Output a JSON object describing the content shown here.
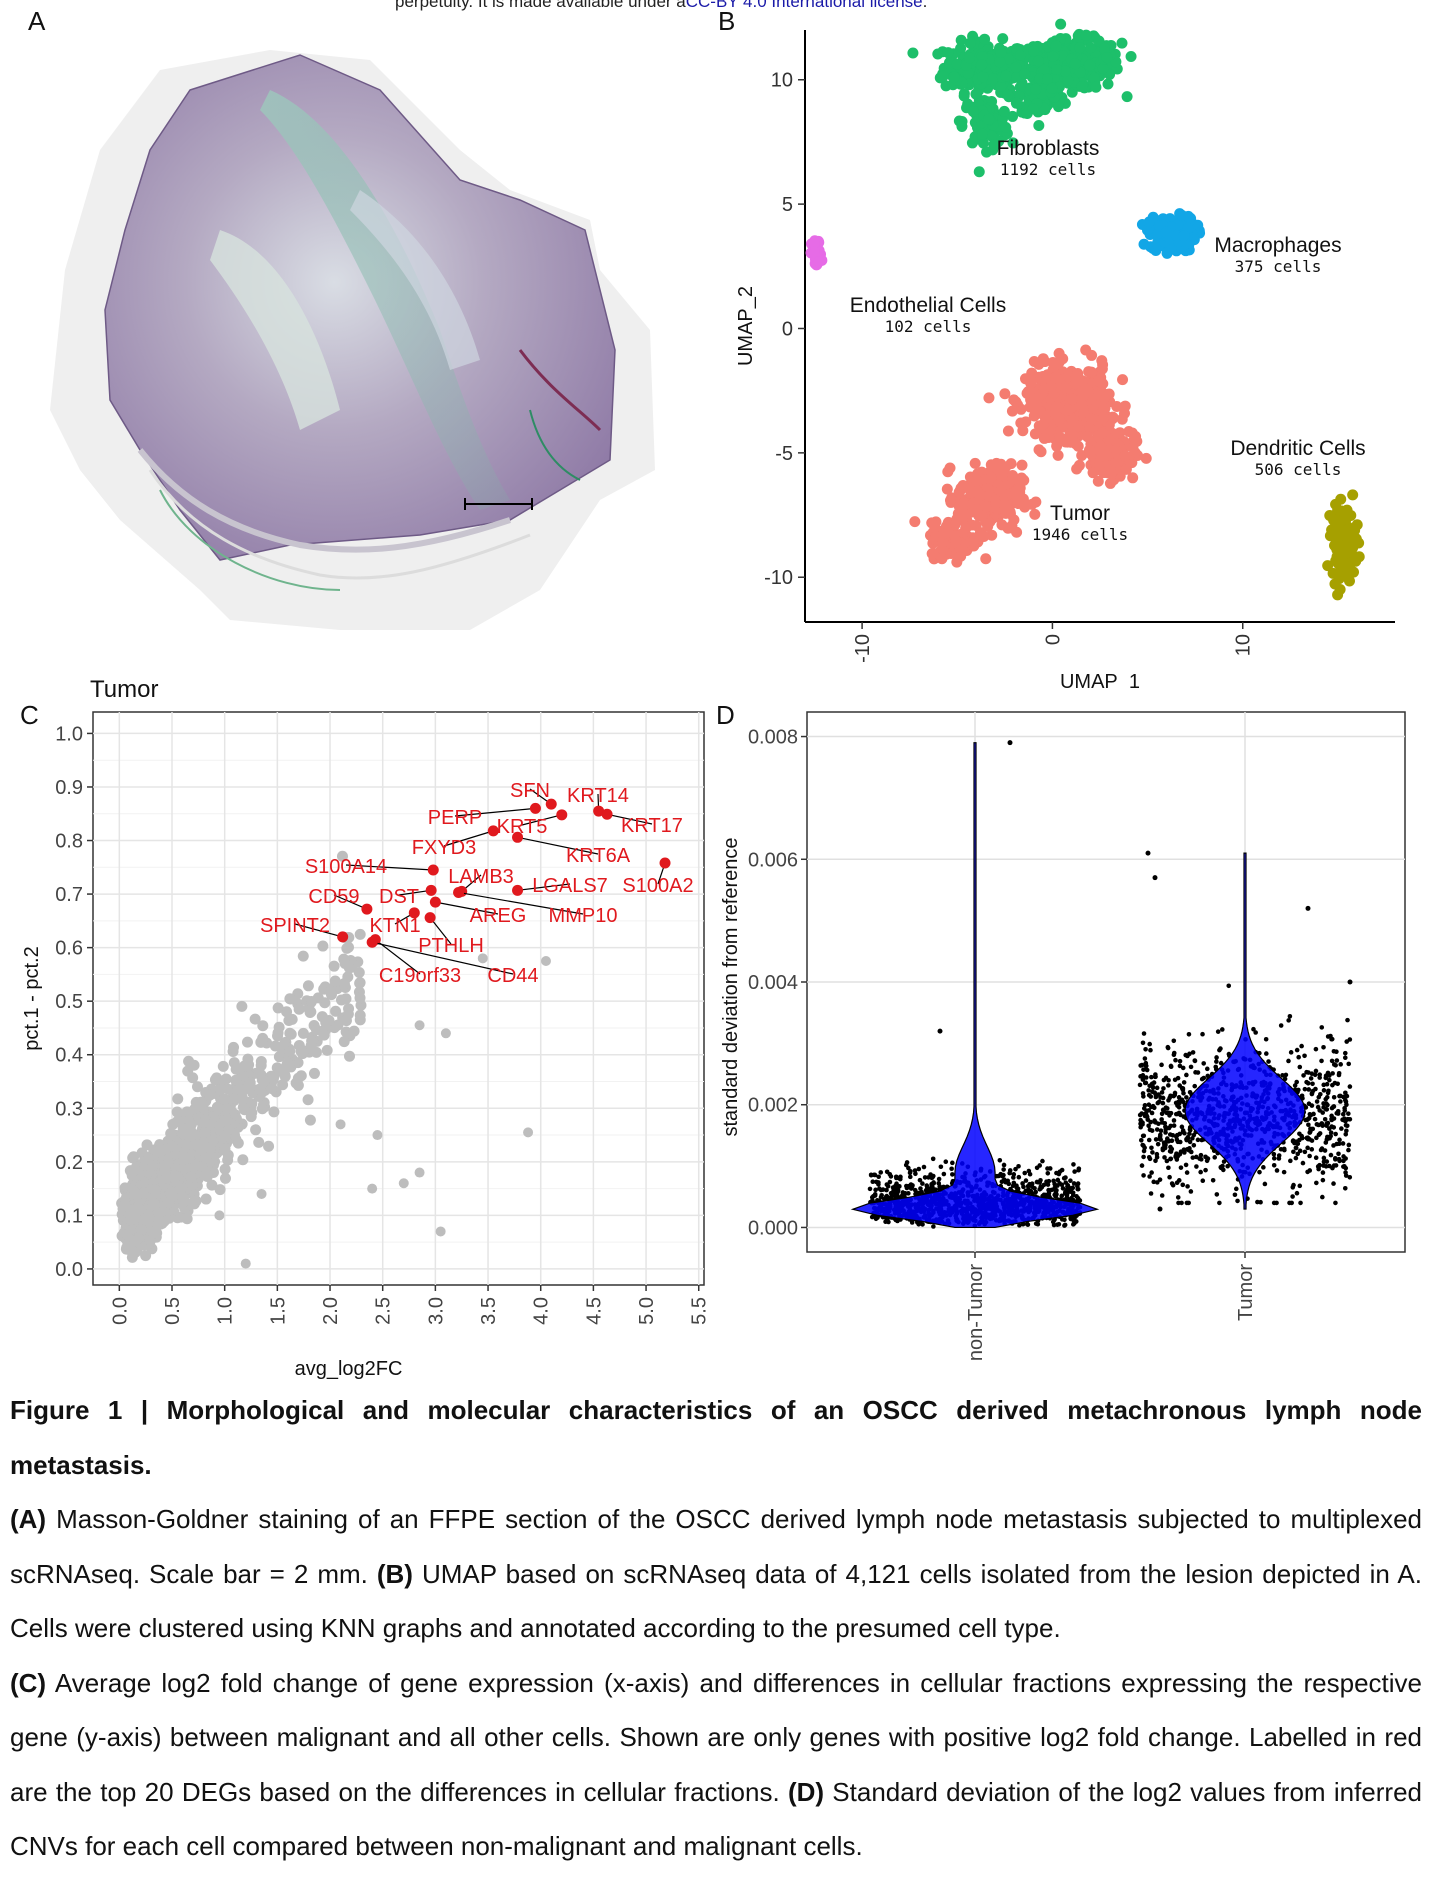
{
  "top_note": {
    "text_before": "perpetuity. It is made available under a",
    "license": "CC-BY 4.0 International license",
    "text_after": "."
  },
  "panels": {
    "a": "A",
    "b": "B",
    "c": "C",
    "d": "D"
  },
  "chart_data": [
    {
      "id": "B",
      "type": "scatter",
      "title": "",
      "xlabel": "UMAP_1",
      "ylabel": "UMAP_2",
      "xlim": [
        -13,
        18
      ],
      "ylim": [
        -11.8,
        12
      ],
      "xticks": [
        -10,
        0,
        10
      ],
      "xtick_labels": [
        "-10",
        "0",
        "10"
      ],
      "yticks": [
        -10,
        -5,
        0,
        5,
        10
      ],
      "ytick_labels": [
        "-10",
        "-5",
        "0",
        "5",
        "10"
      ],
      "clusters": [
        {
          "name": "Fibroblasts",
          "count_label": "1192 cells",
          "color": "#1DBF6A",
          "center": [
            -1.5,
            10.2
          ]
        },
        {
          "name": "Macrophages",
          "count_label": "375 cells",
          "color": "#12A6E6",
          "center": [
            6.2,
            3.8
          ]
        },
        {
          "name": "Endothelial Cells",
          "count_label": "102 cells",
          "color": "#E66BE6",
          "center": [
            -12.4,
            3.1
          ]
        },
        {
          "name": "Tumor",
          "count_label": "1946 cells",
          "color": "#F47C70",
          "center": [
            -1.5,
            -4.8
          ]
        },
        {
          "name": "Dendritic Cells",
          "count_label": "506 cells",
          "color": "#A6A000",
          "center": [
            15.3,
            -8.6
          ]
        }
      ]
    },
    {
      "id": "C",
      "type": "scatter",
      "title": "Tumor",
      "xlabel": "avg_log2FC",
      "ylabel": "pct.1 - pct.2",
      "xlim": [
        -0.25,
        5.55
      ],
      "ylim": [
        -0.03,
        1.04
      ],
      "xticks": [
        0,
        0.5,
        1,
        1.5,
        2,
        2.5,
        3,
        3.5,
        4,
        4.5,
        5,
        5.5
      ],
      "xtick_labels": [
        "0.0",
        "0.5",
        "1.0",
        "1.5",
        "2.0",
        "2.5",
        "3.0",
        "3.5",
        "4.0",
        "4.5",
        "5.0",
        "5.5"
      ],
      "yticks": [
        0,
        0.1,
        0.2,
        0.3,
        0.4,
        0.5,
        0.6,
        0.7,
        0.8,
        0.9,
        1.0
      ],
      "ytick_labels": [
        "0.0",
        "0.1",
        "0.2",
        "0.3",
        "0.4",
        "0.5",
        "0.6",
        "0.7",
        "0.8",
        "0.9",
        "1.0"
      ],
      "highlight_color": "#E0191E",
      "background_color": "#BDBDBD",
      "labelled_genes": [
        {
          "gene": "SFN",
          "x": 4.1,
          "y": 0.868
        },
        {
          "gene": "KRT14",
          "x": 4.55,
          "y": 0.855
        },
        {
          "gene": "KRT17",
          "x": 4.63,
          "y": 0.849
        },
        {
          "gene": "PERP",
          "x": 3.95,
          "y": 0.86
        },
        {
          "gene": "KRT5",
          "x": 4.2,
          "y": 0.848
        },
        {
          "gene": "KRT6A",
          "x": 3.78,
          "y": 0.806
        },
        {
          "gene": "FXYD3",
          "x": 3.55,
          "y": 0.818
        },
        {
          "gene": "S100A14",
          "x": 2.98,
          "y": 0.745
        },
        {
          "gene": "LAMB3",
          "x": 3.25,
          "y": 0.705
        },
        {
          "gene": "LGALS7",
          "x": 3.78,
          "y": 0.707
        },
        {
          "gene": "S100A2",
          "x": 5.18,
          "y": 0.758
        },
        {
          "gene": "CD59",
          "x": 2.35,
          "y": 0.672
        },
        {
          "gene": "DST",
          "x": 2.96,
          "y": 0.707
        },
        {
          "gene": "AREG",
          "x": 3.0,
          "y": 0.685
        },
        {
          "gene": "MMP10",
          "x": 3.22,
          "y": 0.703
        },
        {
          "gene": "SPINT2",
          "x": 2.12,
          "y": 0.62
        },
        {
          "gene": "KTN1",
          "x": 2.8,
          "y": 0.665
        },
        {
          "gene": "PTHLH",
          "x": 2.95,
          "y": 0.656
        },
        {
          "gene": "C19orf33",
          "x": 2.43,
          "y": 0.615
        },
        {
          "gene": "CD44",
          "x": 2.4,
          "y": 0.61
        }
      ],
      "background_outliers": [
        {
          "x": 2.1,
          "y": 0.27
        },
        {
          "x": 2.45,
          "y": 0.25
        },
        {
          "x": 2.4,
          "y": 0.15
        },
        {
          "x": 2.85,
          "y": 0.18
        },
        {
          "x": 2.7,
          "y": 0.16
        },
        {
          "x": 3.05,
          "y": 0.07
        },
        {
          "x": 3.88,
          "y": 0.255
        },
        {
          "x": 4.05,
          "y": 0.575
        },
        {
          "x": 3.1,
          "y": 0.44
        },
        {
          "x": 2.85,
          "y": 0.455
        },
        {
          "x": 3.45,
          "y": 0.58
        },
        {
          "x": 1.2,
          "y": 0.01
        },
        {
          "x": 1.35,
          "y": 0.14
        },
        {
          "x": 0.95,
          "y": 0.1
        }
      ]
    },
    {
      "id": "D",
      "type": "violin",
      "title": "",
      "xlabel": "",
      "ylabel": "standard deviation from reference",
      "categories": [
        "non-Tumor",
        "Tumor"
      ],
      "ylim": [
        -0.0004,
        0.0084
      ],
      "yticks": [
        0,
        0.002,
        0.004,
        0.006,
        0.008
      ],
      "ytick_labels": [
        "0.000",
        "0.002",
        "0.004",
        "0.006",
        "0.008"
      ],
      "fill_color": "#0000FF",
      "series": [
        {
          "name": "non-Tumor",
          "min": 0.0,
          "max": 0.0079,
          "median": 0.0004,
          "bulk_range": [
            0.0,
            0.0015
          ]
        },
        {
          "name": "Tumor",
          "min": 0.0003,
          "max": 0.0061,
          "median": 0.0018,
          "bulk_range": [
            0.0012,
            0.0032
          ]
        }
      ]
    }
  ],
  "caption": {
    "title_lead": "Figure 1 | ",
    "title": "Morphological and molecular characteristics of an OSCC derived metachronous lymph node metastasis.",
    "a_label": "(A)",
    "a_text": " Masson-Goldner staining of an FFPE section of the OSCC derived lymph node metastasis subjected to multiplexed scRNAseq. Scale bar = 2 mm. ",
    "b_label": "(B)",
    "b_text": " UMAP based on scRNAseq data of 4,121 cells isolated from the lesion depicted in A. Cells were clustered using KNN graphs and annotated according to the presumed cell type.",
    "c_label": "(C)",
    "c_text": " Average log2 fold change of gene expression (x-axis) and differences in cellular fractions expressing the respective gene (y-axis) between malignant and all other cells. Shown are only genes with positive log2 fold change. Labelled in red are the top 20 DEGs based on the differences in cellular fractions. ",
    "d_label": "(D)",
    "d_text": " Standard deviation of the log2 values from inferred CNVs for each cell compared between non-malignant and malignant cells."
  }
}
